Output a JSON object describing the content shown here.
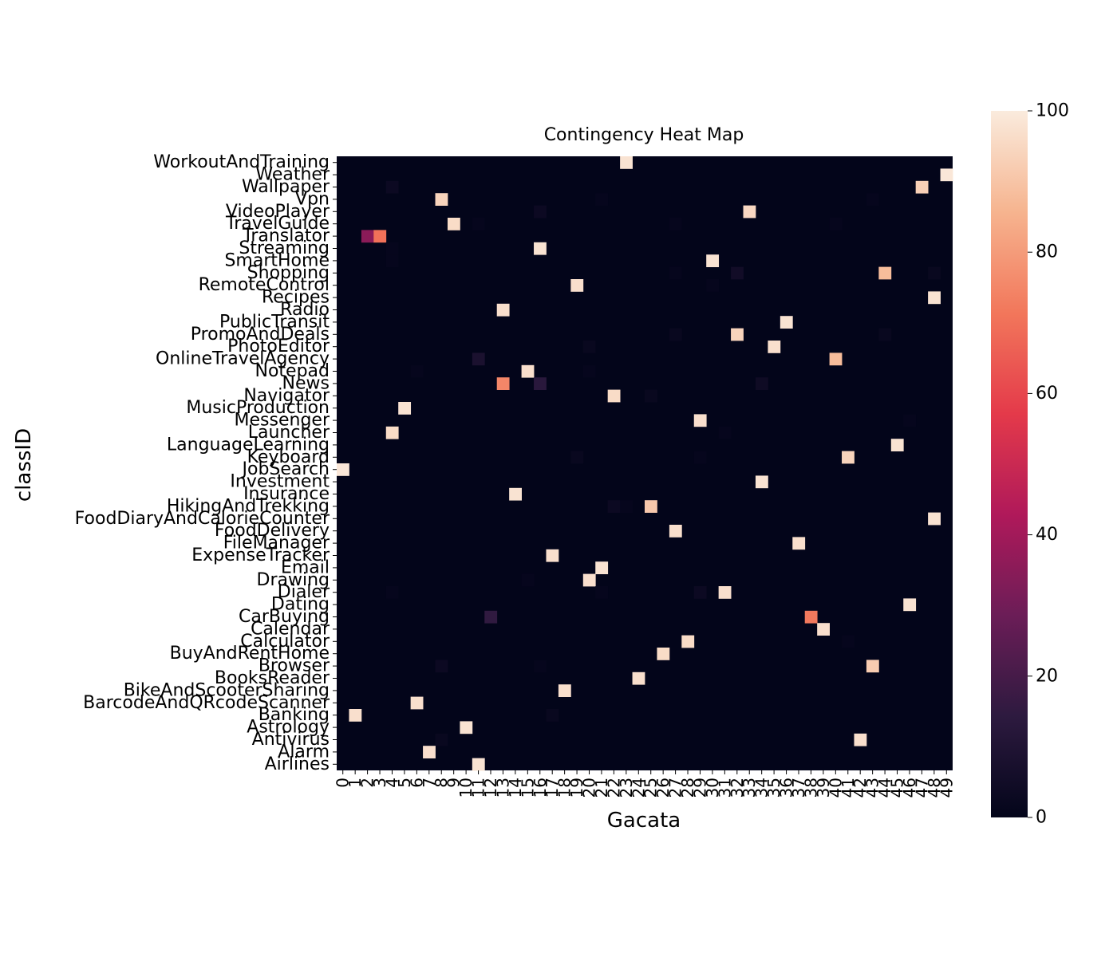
{
  "chart_data": {
    "type": "heatmap",
    "title": "Contingency Heat Map",
    "xlabel": "Gacata",
    "ylabel": "classID",
    "x_categories": [
      "0",
      "1",
      "2",
      "3",
      "4",
      "5",
      "6",
      "7",
      "8",
      "9",
      "10",
      "11",
      "12",
      "13",
      "14",
      "15",
      "16",
      "17",
      "18",
      "19",
      "20",
      "21",
      "22",
      "23",
      "24",
      "25",
      "26",
      "27",
      "28",
      "29",
      "30",
      "31",
      "32",
      "33",
      "34",
      "35",
      "36",
      "37",
      "38",
      "39",
      "40",
      "41",
      "42",
      "43",
      "44",
      "45",
      "46",
      "47",
      "48",
      "49"
    ],
    "y_categories": [
      "WorkoutAndTraining",
      "Weather",
      "Wallpaper",
      "Vpn",
      "VideoPlayer",
      "TravelGuide",
      "Translator",
      "Streaming",
      "SmartHome",
      "Shopping",
      "RemoteControl",
      "Recipes",
      "Radio",
      "PublicTransit",
      "PromoAndDeals",
      "PhotoEditor",
      "OnlineTravelAgency",
      "Notepad",
      "News",
      "Navigator",
      "MusicProduction",
      "Messenger",
      "Launcher",
      "LanguageLearning",
      "Keyboard",
      "JobSearch",
      "Investment",
      "Insurance",
      "HikingAndTrekking",
      "FoodDiaryAndCalorieCounter",
      "FoodDelivery",
      "FileManager",
      "ExpenseTracker",
      "Email",
      "Drawing",
      "Dialer",
      "Dating",
      "CarBuying",
      "Calendar",
      "Calculator",
      "BuyAndRentHome",
      "Browser",
      "BooksReader",
      "BikeAndScooterSharing",
      "BarcodeAndQRcodeScanner",
      "Banking",
      "Astrology",
      "Antivirus",
      "Alarm",
      "Airlines"
    ],
    "colorbar": {
      "min": 0,
      "max": 100,
      "ticks": [
        "0",
        "20",
        "40",
        "60",
        "80",
        "100"
      ],
      "colors": [
        "#03051a",
        "#2d1a3f",
        "#6b1d57",
        "#b0195a",
        "#e43a4a",
        "#f2775b",
        "#f6b48f",
        "#faebdd"
      ]
    },
    "cells": [
      [
        0,
        23,
        98
      ],
      [
        1,
        49,
        99
      ],
      [
        2,
        4,
        3
      ],
      [
        2,
        47,
        93
      ],
      [
        3,
        8,
        94
      ],
      [
        3,
        21,
        1
      ],
      [
        3,
        43,
        1
      ],
      [
        4,
        16,
        3
      ],
      [
        4,
        33,
        95
      ],
      [
        5,
        9,
        96
      ],
      [
        5,
        11,
        1
      ],
      [
        5,
        27,
        1
      ],
      [
        5,
        40,
        1
      ],
      [
        6,
        2,
        35
      ],
      [
        6,
        3,
        70
      ],
      [
        7,
        16,
        98
      ],
      [
        7,
        4,
        1
      ],
      [
        8,
        30,
        98
      ],
      [
        8,
        4,
        1
      ],
      [
        9,
        32,
        5
      ],
      [
        9,
        44,
        88
      ],
      [
        9,
        48,
        2
      ],
      [
        9,
        27,
        1
      ],
      [
        10,
        19,
        97
      ],
      [
        10,
        30,
        1
      ],
      [
        11,
        48,
        98
      ],
      [
        12,
        13,
        97
      ],
      [
        13,
        36,
        98
      ],
      [
        14,
        27,
        2
      ],
      [
        14,
        32,
        94
      ],
      [
        14,
        44,
        2
      ],
      [
        15,
        35,
        97
      ],
      [
        15,
        20,
        2
      ],
      [
        16,
        11,
        8
      ],
      [
        16,
        40,
        88
      ],
      [
        17,
        15,
        97
      ],
      [
        17,
        6,
        1
      ],
      [
        17,
        20,
        1
      ],
      [
        18,
        13,
        75
      ],
      [
        18,
        16,
        13
      ],
      [
        18,
        34,
        4
      ],
      [
        19,
        22,
        96
      ],
      [
        19,
        25,
        2
      ],
      [
        20,
        5,
        98
      ],
      [
        21,
        29,
        97
      ],
      [
        21,
        46,
        1
      ],
      [
        22,
        4,
        96
      ],
      [
        22,
        31,
        1
      ],
      [
        23,
        45,
        98
      ],
      [
        24,
        19,
        2
      ],
      [
        24,
        41,
        94
      ],
      [
        24,
        29,
        1
      ],
      [
        25,
        0,
        99
      ],
      [
        26,
        34,
        98
      ],
      [
        27,
        14,
        98
      ],
      [
        28,
        22,
        3
      ],
      [
        28,
        25,
        91
      ],
      [
        28,
        23,
        1
      ],
      [
        29,
        48,
        98
      ],
      [
        30,
        27,
        97
      ],
      [
        31,
        37,
        97
      ],
      [
        32,
        17,
        97
      ],
      [
        33,
        21,
        98
      ],
      [
        34,
        20,
        97
      ],
      [
        34,
        15,
        1
      ],
      [
        35,
        31,
        97
      ],
      [
        35,
        29,
        3
      ],
      [
        35,
        4,
        1
      ],
      [
        35,
        21,
        1
      ],
      [
        36,
        46,
        98
      ],
      [
        37,
        12,
        15
      ],
      [
        37,
        38,
        72
      ],
      [
        38,
        39,
        97
      ],
      [
        39,
        28,
        96
      ],
      [
        39,
        41,
        1
      ],
      [
        40,
        26,
        96
      ],
      [
        41,
        8,
        3
      ],
      [
        41,
        43,
        92
      ],
      [
        41,
        16,
        1
      ],
      [
        42,
        24,
        97
      ],
      [
        43,
        18,
        97
      ],
      [
        44,
        6,
        97
      ],
      [
        45,
        1,
        97
      ],
      [
        45,
        17,
        2
      ],
      [
        46,
        10,
        98
      ],
      [
        47,
        42,
        97
      ],
      [
        47,
        8,
        2
      ],
      [
        48,
        7,
        97
      ],
      [
        49,
        11,
        98
      ]
    ]
  }
}
